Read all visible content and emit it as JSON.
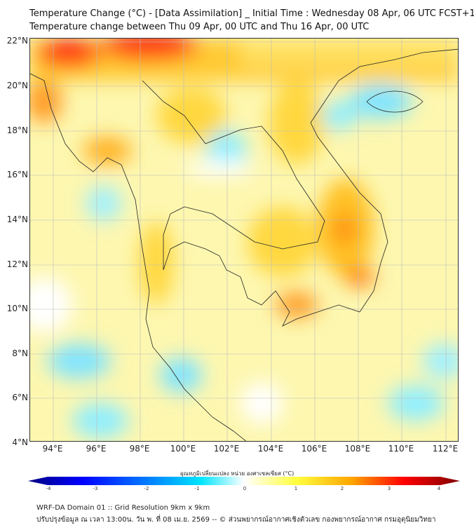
{
  "title": {
    "line1": "Temperature Change (°C) - [Data Assimilation] _ Initial Time : Wednesday 08 Apr, 06 UTC FCST+168",
    "line2": "Temperature change between Thu 09 Apr, 00 UTC and Thu 16 Apr, 00 UTC"
  },
  "axes": {
    "lat_labels": [
      "22°N",
      "20°N",
      "18°N",
      "16°N",
      "14°N",
      "12°N",
      "10°N",
      "8°N",
      "6°N",
      "4°N"
    ],
    "lon_labels": [
      "94°E",
      "96°E",
      "98°E",
      "100°E",
      "102°E",
      "104°E",
      "106°E",
      "108°E",
      "110°E",
      "112°E"
    ]
  },
  "colorbar": {
    "title": "อุณหภูมิเปลี่ยนแปลง หน่วย องศาเซลเซียส (°C)",
    "ticks": [
      "-4",
      "-3",
      "-2",
      "-1",
      "0",
      "1",
      "2",
      "3",
      "4"
    ],
    "colors": [
      "#00007f",
      "#0000ff",
      "#0080ff",
      "#00e5ff",
      "#ffffff",
      "#ffff40",
      "#ffa500",
      "#ff0000",
      "#7f0000"
    ]
  },
  "footer": {
    "line1": "WRF-DA Domain 01 :: Grid Resolution 9km x 9km",
    "line2": "ปรับปรุงข้อมูล ณ เวลา 13:00น. วัน พ. ที่ 08 เม.ย. 2569 -- © ส่วนพยากรณ์อากาศเชิงตัวเลข กองพยากรณ์อากาศ กรมอุตุนิยมวิทยา"
  }
}
